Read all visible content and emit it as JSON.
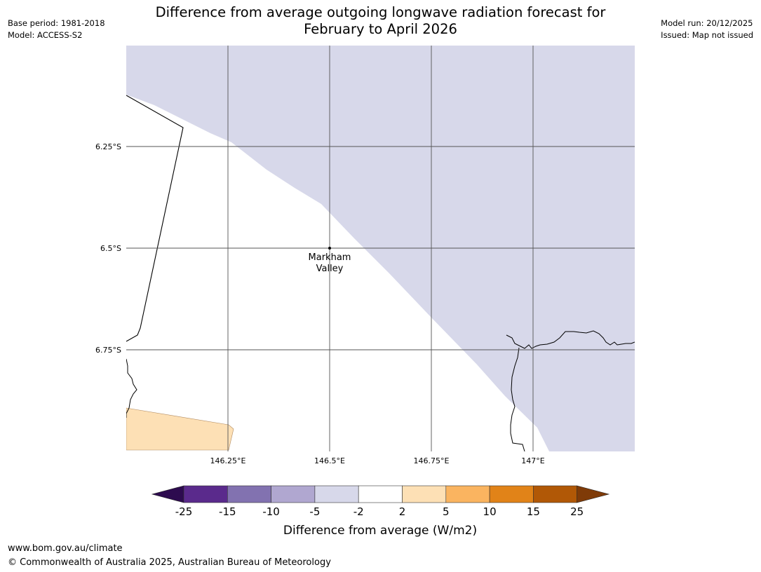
{
  "header": {
    "base_period": "Base period: 1981-2018",
    "model": "Model: ACCESS-S2",
    "model_run": "Model run: 20/12/2025",
    "issued": "Issued: Map not issued",
    "title_line1": "Difference from average outgoing longwave radiation forecast for",
    "title_line2": "February to April 2026"
  },
  "map": {
    "latitude_labels": [
      "6.25°S",
      "6.5°S",
      "6.75°S"
    ],
    "longitude_labels": [
      "146.25°E",
      "146.5°E",
      "146.75°E",
      "147°E"
    ],
    "place": {
      "name_line1": "Markham",
      "name_line2": "Valley",
      "lon": 146.5,
      "lat": -6.5
    }
  },
  "legend": {
    "title": "Difference from average (W/m2)",
    "ticks": [
      "-25",
      "-15",
      "-10",
      "-5",
      "-2",
      "2",
      "5",
      "10",
      "15",
      "25"
    ],
    "colors": {
      "below_min": "#2d0b4f",
      "bins": [
        "#5a2a8c",
        "#8272b0",
        "#b0a7d0",
        "#d7d8ea",
        "#ffffff",
        "#fde0b5",
        "#fab460",
        "#e18318",
        "#b15806"
      ],
      "above_max": "#7f3b08"
    }
  },
  "colors": {
    "negative_area": "#d7d8ea",
    "positive_area": "#fde0b5",
    "gridline": "#555555",
    "coastline": "#000000"
  },
  "footer": {
    "url": "www.bom.gov.au/climate",
    "copyright": "© Commonwealth of Australia 2025, Australian Bureau of Meteorology"
  }
}
